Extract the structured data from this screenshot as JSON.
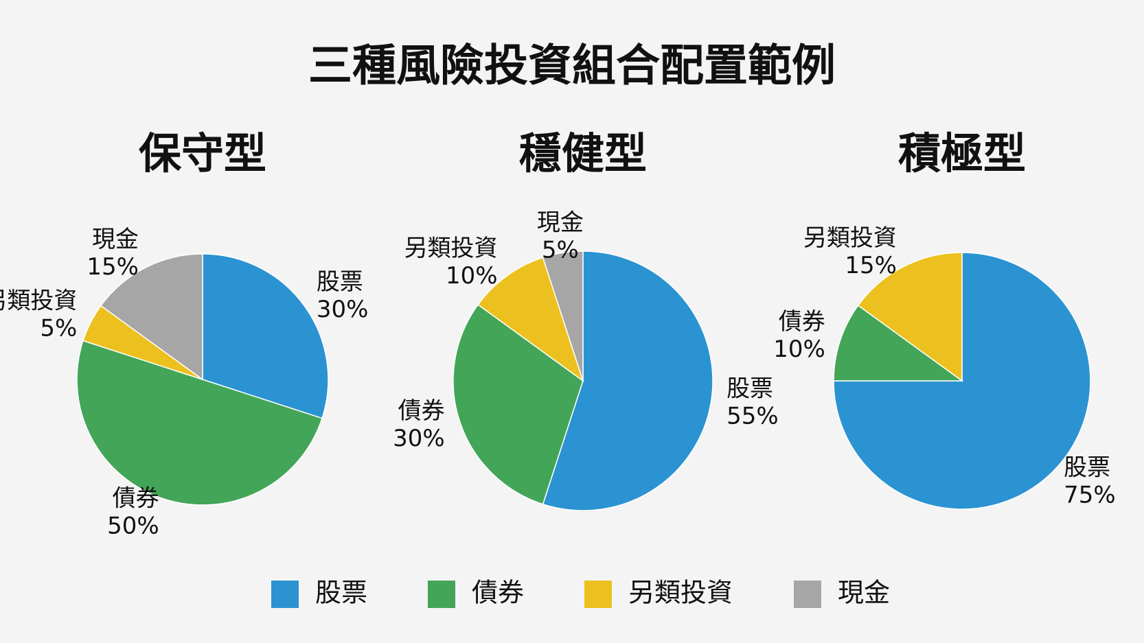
{
  "title": "三種風險投資組合配置範例",
  "chart_data": [
    {
      "type": "pie",
      "title": "保守型",
      "categories": [
        "股票",
        "債券",
        "另類投資",
        "現金"
      ],
      "values": [
        30,
        50,
        5,
        15
      ],
      "value_labels": [
        "30%",
        "50%",
        "5%",
        "15%"
      ],
      "colors": [
        "#2b93d1",
        "#43a558",
        "#ecc11f",
        "#a6a6a6"
      ]
    },
    {
      "type": "pie",
      "title": "穩健型",
      "categories": [
        "股票",
        "債券",
        "另類投資",
        "現金"
      ],
      "values": [
        55,
        30,
        10,
        5
      ],
      "value_labels": [
        "55%",
        "30%",
        "10%",
        "5%"
      ],
      "colors": [
        "#2b93d1",
        "#43a558",
        "#ecc11f",
        "#a6a6a6"
      ]
    },
    {
      "type": "pie",
      "title": "積極型",
      "categories": [
        "股票",
        "債券",
        "另類投資"
      ],
      "values": [
        75,
        10,
        15
      ],
      "value_labels": [
        "75%",
        "10%",
        "15%"
      ],
      "colors": [
        "#2b93d1",
        "#43a558",
        "#ecc11f"
      ]
    }
  ]
}
